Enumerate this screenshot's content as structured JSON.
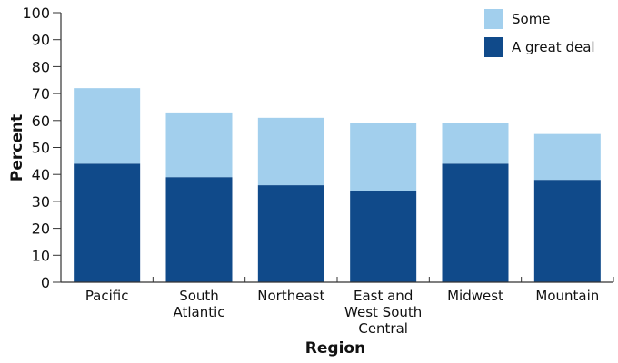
{
  "chart_data": {
    "type": "bar",
    "stacked": true,
    "title": "",
    "xlabel": "Region",
    "ylabel": "Percent",
    "ylim": [
      0,
      100
    ],
    "yticks": [
      0,
      10,
      20,
      30,
      40,
      50,
      60,
      70,
      80,
      90,
      100
    ],
    "categories": [
      "Pacific",
      "South Atlantic",
      "Northeast",
      "East and West South Central",
      "Midwest",
      "Mountain"
    ],
    "category_lines": [
      [
        "Pacific"
      ],
      [
        "South",
        "Atlantic"
      ],
      [
        "Northeast"
      ],
      [
        "East and",
        "West South",
        "Central"
      ],
      [
        "Midwest"
      ],
      [
        "Mountain"
      ]
    ],
    "series": [
      {
        "name": "A great deal",
        "color": "#104a8a",
        "values": [
          44,
          39,
          36,
          34,
          44,
          38
        ]
      },
      {
        "name": "Some",
        "color": "#a2cfed",
        "values": [
          28,
          24,
          25,
          25,
          15,
          17
        ]
      }
    ],
    "totals": [
      72,
      63,
      61,
      59,
      59,
      55
    ],
    "legend_position": "top-right",
    "grid": false
  },
  "legend": [
    {
      "label": "Some",
      "color": "#a2cfed"
    },
    {
      "label": "A great deal",
      "color": "#104a8a"
    }
  ]
}
